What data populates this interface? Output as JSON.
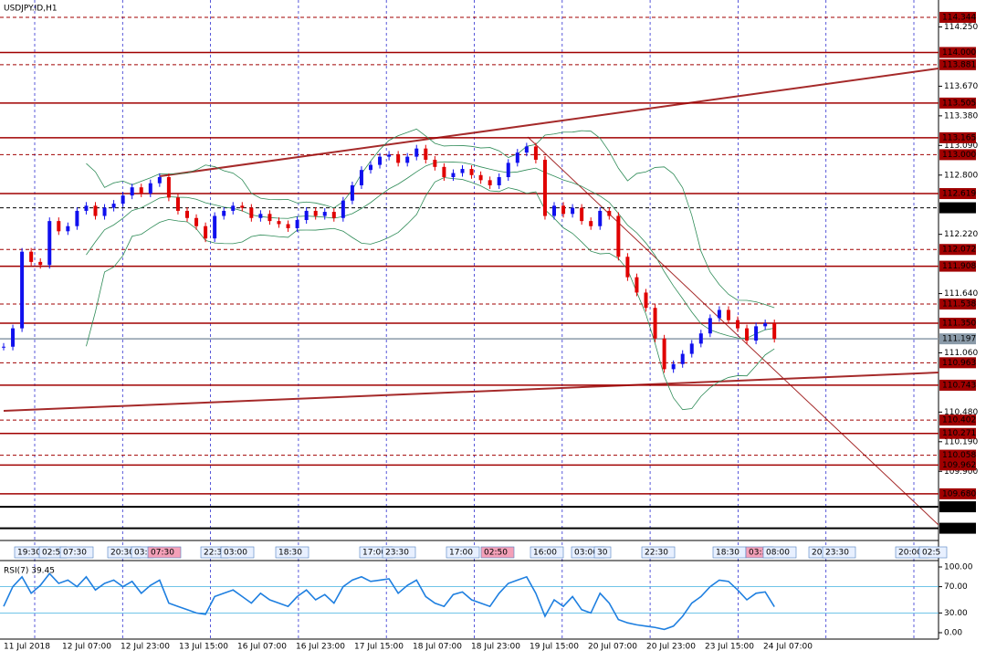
{
  "chart_data": [
    {
      "type": "candlestick",
      "title": "USDJPY.ID,H1",
      "x_labels": [
        "11 Jul 2018",
        "12 Jul 07:00",
        "12 Jul 23:00",
        "13 Jul 15:00",
        "16 Jul 07:00",
        "16 Jul 23:00",
        "17 Jul 15:00",
        "18 Jul 07:00",
        "18 Jul 23:00",
        "19 Jul 15:00",
        "20 Jul 07:00",
        "20 Jul 23:00",
        "23 Jul 15:00",
        "24 Jul 07:00"
      ],
      "values": [
        111.12,
        111.3,
        112.05,
        111.95,
        111.92,
        112.35,
        112.25,
        112.3,
        112.45,
        112.5,
        112.4,
        112.48,
        112.52,
        112.6,
        112.68,
        112.62,
        112.72,
        112.78,
        112.58,
        112.45,
        112.38,
        112.3,
        112.18,
        112.4,
        112.45,
        112.5,
        112.48,
        112.38,
        112.42,
        112.35,
        112.32,
        112.28,
        112.36,
        112.45,
        112.4,
        112.44,
        112.38,
        112.55,
        112.7,
        112.85,
        112.9,
        112.98,
        113.0,
        112.92,
        112.98,
        113.06,
        112.95,
        112.88,
        112.78,
        112.82,
        112.86,
        112.8,
        112.75,
        112.7,
        112.78,
        112.92,
        113.02,
        113.08,
        112.95,
        112.4,
        112.5,
        112.42,
        112.48,
        112.35,
        112.3,
        112.45,
        112.4,
        112.0,
        111.8,
        111.65,
        111.5,
        111.2,
        110.9,
        110.95,
        111.05,
        111.15,
        111.25,
        111.4,
        111.48,
        111.38,
        111.3,
        111.18,
        111.32,
        111.35,
        111.197
      ],
      "up_color": "#1010ee",
      "down_color": "#e00000",
      "ylim": [
        109.241,
        114.496
      ],
      "yticks": [
        {
          "value": 114.25,
          "label": "114.250"
        },
        {
          "value": 113.67,
          "label": "113.670"
        },
        {
          "value": 113.38,
          "label": "113.380"
        },
        {
          "value": 113.09,
          "label": "113.090"
        },
        {
          "value": 112.8,
          "label": "112.800"
        },
        {
          "value": 112.22,
          "label": "112.220"
        },
        {
          "value": 111.64,
          "label": "111.640"
        },
        {
          "value": 111.06,
          "label": "111.060"
        },
        {
          "value": 110.48,
          "label": "110.480"
        },
        {
          "value": 110.19,
          "label": "110.190"
        },
        {
          "value": 109.9,
          "label": "109.900"
        }
      ],
      "levels": [
        {
          "value": 114.344,
          "label": "114.344",
          "style": "dashed",
          "color": "#a00000"
        },
        {
          "value": 114.0,
          "label": "114.000",
          "style": "solid",
          "color": "#a00000"
        },
        {
          "value": 113.881,
          "label": "113.881",
          "style": "dashed",
          "color": "#a00000"
        },
        {
          "value": 113.505,
          "label": "113.505",
          "style": "solid",
          "color": "#a00000"
        },
        {
          "value": 113.165,
          "label": "113.165",
          "style": "solid",
          "color": "#a00000"
        },
        {
          "value": 113.0,
          "label": "113.000",
          "style": "dashed",
          "color": "#a00000"
        },
        {
          "value": 112.619,
          "label": "112.619",
          "style": "solid",
          "color": "#a00000"
        },
        {
          "value": 112.48,
          "label": "112.480",
          "style": "dashed",
          "color": "#000000"
        },
        {
          "value": 112.072,
          "label": "112.072",
          "style": "dashed",
          "color": "#a00000"
        },
        {
          "value": 111.908,
          "label": "111.908",
          "style": "solid",
          "color": "#a00000"
        },
        {
          "value": 111.538,
          "label": "111.538",
          "style": "dashed",
          "color": "#a00000"
        },
        {
          "value": 111.35,
          "label": "111.350",
          "style": "solid",
          "color": "#a00000"
        },
        {
          "value": 111.197,
          "label": "111.197",
          "style": "solid",
          "color": "#8a9aa8"
        },
        {
          "value": 110.963,
          "label": "110.963",
          "style": "dashed",
          "color": "#a00000"
        },
        {
          "value": 110.743,
          "label": "110.743",
          "style": "solid",
          "color": "#a00000"
        },
        {
          "value": 110.402,
          "label": "110.402",
          "style": "dashed",
          "color": "#a00000"
        },
        {
          "value": 110.271,
          "label": "110.271",
          "style": "solid",
          "color": "#a00000"
        },
        {
          "value": 110.058,
          "label": "110.058",
          "style": "dashed",
          "color": "#a00000"
        },
        {
          "value": 109.962,
          "label": "109.962",
          "style": "solid",
          "color": "#a00000"
        },
        {
          "value": 109.68,
          "label": "109.680",
          "style": "solid",
          "color": "#a00000"
        },
        {
          "value": 109.553,
          "label": "109.553",
          "style": "solid",
          "color": "#000000"
        },
        {
          "value": 109.343,
          "label": "109.343",
          "style": "solid",
          "color": "#000000"
        }
      ],
      "time_markers": [
        {
          "label": "19:30"
        },
        {
          "label": "02:5"
        },
        {
          "label": "07:30"
        },
        {
          "label": "20:30"
        },
        {
          "label": "03:"
        },
        {
          "label": "07:30",
          "highlight": true
        },
        {
          "label": "22:3"
        },
        {
          "label": "03:00"
        },
        {
          "label": "18:30"
        },
        {
          "label": "17:00"
        },
        {
          "label": "23:30"
        },
        {
          "label": "17:00"
        },
        {
          "label": "02:50",
          "highlight": true
        },
        {
          "label": "16:00"
        },
        {
          "label": "03:00"
        },
        {
          "label": "30"
        },
        {
          "label": "22:30"
        },
        {
          "label": "18:30"
        },
        {
          "label": "03:3",
          "highlight": true
        },
        {
          "label": "08:00"
        },
        {
          "label": "20"
        },
        {
          "label": "23:30"
        },
        {
          "label": "20:00"
        },
        {
          "label": "02:5"
        }
      ]
    },
    {
      "type": "line",
      "title": "RSI(7) 39.45",
      "color": "#1e7fe0",
      "values": [
        40,
        70,
        85,
        60,
        72,
        90,
        75,
        80,
        70,
        85,
        65,
        75,
        80,
        70,
        78,
        60,
        72,
        80,
        45,
        40,
        35,
        30,
        28,
        55,
        60,
        65,
        55,
        45,
        60,
        50,
        45,
        40,
        55,
        65,
        50,
        58,
        45,
        70,
        80,
        85,
        78,
        80,
        82,
        60,
        72,
        80,
        55,
        45,
        40,
        58,
        62,
        50,
        45,
        40,
        60,
        75,
        80,
        85,
        60,
        25,
        50,
        40,
        55,
        35,
        30,
        60,
        45,
        20,
        15,
        12,
        10,
        8,
        5,
        10,
        25,
        45,
        55,
        70,
        80,
        78,
        65,
        50,
        60,
        62,
        39.45
      ],
      "ylim": [
        0,
        100
      ],
      "yticks": [
        {
          "value": 100,
          "label": "100.00"
        },
        {
          "value": 70,
          "label": "70.00"
        },
        {
          "value": 30,
          "label": "30.00"
        },
        {
          "value": 0,
          "label": "0.00"
        }
      ],
      "levels": [
        70,
        30
      ]
    }
  ]
}
